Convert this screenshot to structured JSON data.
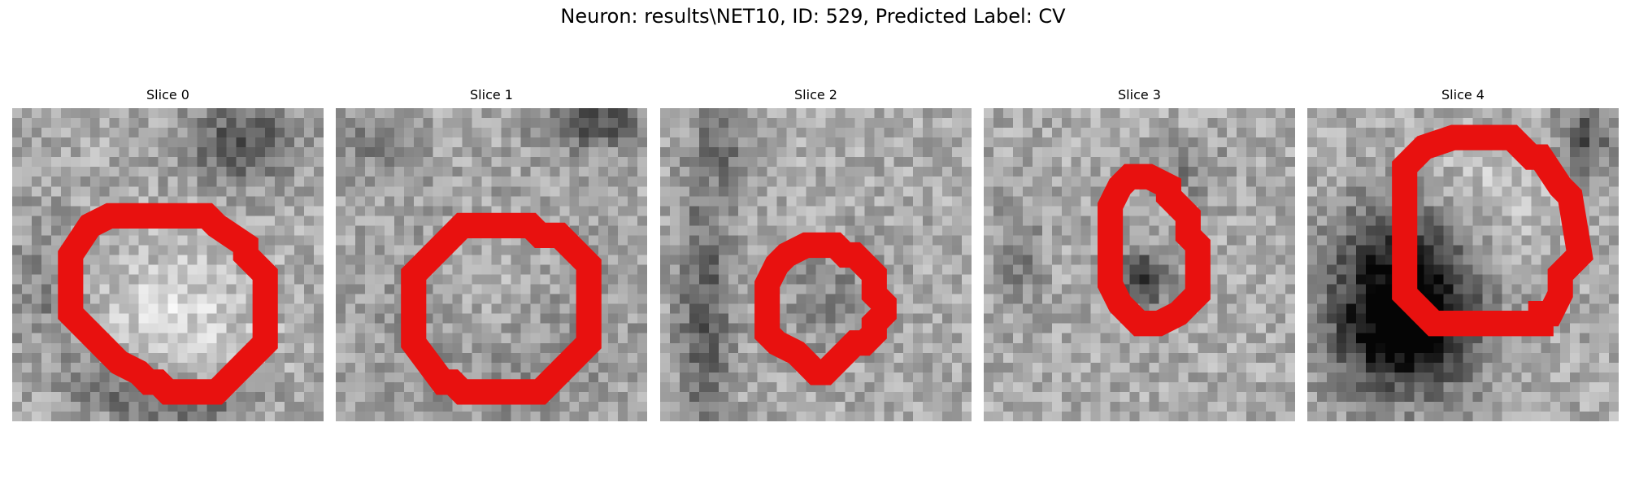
{
  "figure": {
    "title": "Neuron: results\\NET10, ID: 529, Predicted Label: CV"
  },
  "panels": [
    {
      "title": "Slice 0",
      "contour_color": "#e8110f"
    },
    {
      "title": "Slice 1",
      "contour_color": "#e8110f"
    },
    {
      "title": "Slice 2",
      "contour_color": "#e8110f"
    },
    {
      "title": "Slice 3",
      "contour_color": "#e8110f"
    },
    {
      "title": "Slice 4",
      "contour_color": "#e8110f"
    }
  ],
  "colormap": "grayscale"
}
